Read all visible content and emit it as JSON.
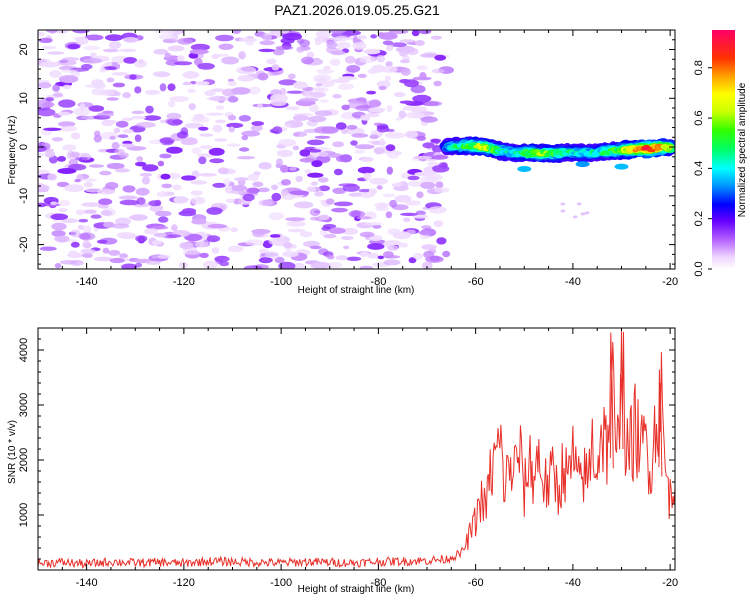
{
  "chart_data": [
    {
      "type": "heatmap",
      "title": "PAZ1.2026.019.05.25.G21",
      "xlabel": "Height of straight line (km)",
      "ylabel": "Frequency (Hz)",
      "xlim": [
        -150,
        -19
      ],
      "ylim": [
        -25,
        24
      ],
      "xticks": [
        -140,
        -120,
        -100,
        -80,
        -60,
        -40,
        -20
      ],
      "xtick_labels": [
        "-140",
        "-120",
        "-100",
        "-80",
        "-60",
        "-40",
        "-20"
      ],
      "yticks": [
        -20,
        -10,
        0,
        10,
        20
      ],
      "ytick_labels": [
        "-20",
        "-10",
        "0",
        "10",
        "20"
      ],
      "noise_region": {
        "x": [
          -150,
          -66
        ],
        "frequency": [
          -25,
          24
        ],
        "amplitude": [
          0.0,
          0.1
        ]
      },
      "signal_band": [
        {
          "height": -66,
          "frequency": 0.0,
          "amplitude": 0.25
        },
        {
          "height": -62,
          "frequency": 0.3,
          "amplitude": 0.45
        },
        {
          "height": -58,
          "frequency": 0.0,
          "amplitude": 0.6
        },
        {
          "height": -55,
          "frequency": -0.8,
          "amplitude": 0.35
        },
        {
          "height": -52,
          "frequency": -1.2,
          "amplitude": 0.3
        },
        {
          "height": -48,
          "frequency": -1.2,
          "amplitude": 0.55
        },
        {
          "height": -44,
          "frequency": -1.3,
          "amplitude": 0.45
        },
        {
          "height": -40,
          "frequency": -1.2,
          "amplitude": 0.35
        },
        {
          "height": -36,
          "frequency": -1.2,
          "amplitude": 0.3
        },
        {
          "height": -32,
          "frequency": -0.8,
          "amplitude": 0.4
        },
        {
          "height": -28,
          "frequency": -0.5,
          "amplitude": 0.7
        },
        {
          "height": -24,
          "frequency": -0.3,
          "amplitude": 0.95
        },
        {
          "height": -20,
          "frequency": 0.0,
          "amplitude": 0.6
        }
      ],
      "colorbar": {
        "label": "Normalized spectral amplitude",
        "range": [
          0.0,
          0.95
        ],
        "ticks": [
          0.0,
          0.2,
          0.4,
          0.6,
          0.8
        ],
        "tick_labels": [
          "0.0",
          "0.2",
          "0.4",
          "0.6",
          "0.8"
        ]
      }
    },
    {
      "type": "line",
      "title": "",
      "xlabel": "Height of straight line (km)",
      "ylabel": "SNR (10 * v/v)",
      "xlim": [
        -150,
        -19
      ],
      "ylim": [
        0,
        4400
      ],
      "xticks": [
        -140,
        -120,
        -100,
        -80,
        -60,
        -40,
        -20
      ],
      "xtick_labels": [
        "-140",
        "-120",
        "-100",
        "-80",
        "-60",
        "-40",
        "-20"
      ],
      "yticks": [
        1000,
        2000,
        3000,
        4000
      ],
      "ytick_labels": [
        "1000",
        "2000",
        "3000",
        "4000"
      ],
      "line_color": "#e8302a",
      "series": [
        {
          "name": "SNR",
          "x": [
            -150,
            -145,
            -140,
            -135,
            -130,
            -125,
            -120,
            -115,
            -110,
            -105,
            -100,
            -95,
            -90,
            -85,
            -80,
            -75,
            -70,
            -66,
            -63,
            -62,
            -61,
            -60,
            -59,
            -58,
            -57,
            -56,
            -55,
            -54,
            -53,
            -52,
            -51,
            -50,
            -49,
            -48,
            -47,
            -46,
            -45,
            -44,
            -43,
            -42,
            -41,
            -40,
            -39,
            -38,
            -37,
            -36,
            -35,
            -34,
            -33,
            -32,
            -31,
            -30,
            -29,
            -28,
            -27,
            -26,
            -25,
            -24,
            -23,
            -22,
            -21,
            -20,
            -19
          ],
          "values": [
            120,
            140,
            110,
            150,
            130,
            140,
            120,
            160,
            150,
            140,
            130,
            150,
            140,
            130,
            150,
            160,
            170,
            200,
            300,
            450,
            700,
            900,
            1300,
            1100,
            1700,
            2000,
            2300,
            1500,
            1900,
            1800,
            2200,
            1400,
            2000,
            1700,
            2100,
            1600,
            1500,
            1800,
            1400,
            1900,
            1600,
            2100,
            1500,
            1800,
            1600,
            2300,
            1900,
            2600,
            2200,
            3700,
            1700,
            4400,
            2000,
            2300,
            2600,
            2100,
            2400,
            1900,
            2600,
            3400,
            1800,
            1300,
            1500
          ]
        }
      ]
    }
  ]
}
